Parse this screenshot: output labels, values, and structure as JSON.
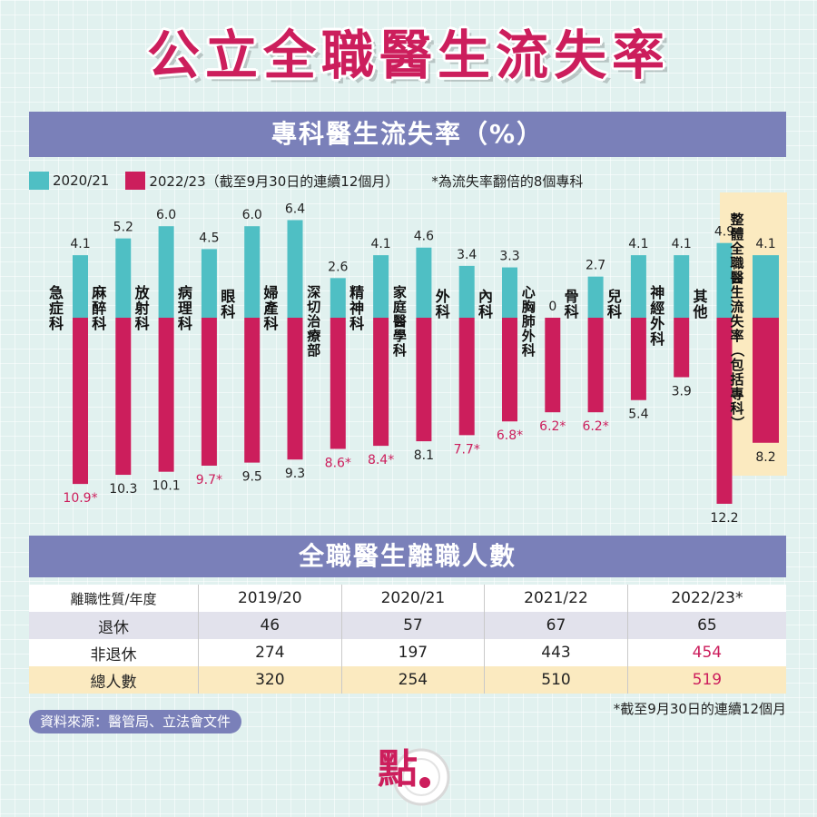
{
  "title": "公立全職醫生流失率",
  "chart_banner": "專科醫生流失率（%）",
  "legend": {
    "series1": "2020/21",
    "series2": "2022/23（截至9月30日的連續12個月）",
    "note": "*為流失率翻倍的8個專科"
  },
  "colors": {
    "teal": "#4fbfc4",
    "crimson": "#cc1e5c",
    "banner": "#7a80b9",
    "highlight": "#fbeac0"
  },
  "chart_data": {
    "type": "bar",
    "layout": "diverging",
    "categories": [
      "急症科",
      "麻醉科",
      "放射科",
      "病理科",
      "眼科",
      "婦產科",
      "深切治療部",
      "精神科",
      "家庭醫學科",
      "外科",
      "內科",
      "心胸肺外科",
      "骨科",
      "兒科",
      "神經外科",
      "其他"
    ],
    "series": [
      {
        "name": "2020/21",
        "values": [
          4.1,
          5.2,
          6.0,
          4.5,
          6.0,
          6.4,
          2.6,
          4.1,
          4.6,
          3.4,
          3.3,
          0,
          2.7,
          4.1,
          4.1,
          4.9
        ]
      },
      {
        "name": "2022/23",
        "values": [
          10.9,
          10.3,
          10.1,
          9.7,
          9.5,
          9.3,
          8.6,
          8.4,
          8.1,
          7.7,
          6.8,
          6.2,
          6.2,
          5.4,
          3.9,
          12.2
        ]
      }
    ],
    "labels2020": [
      "4.1",
      "5.2",
      "6.0",
      "4.5",
      "6.0",
      "6.4",
      "2.6",
      "4.1",
      "4.6",
      "3.4",
      "3.3",
      "0",
      "2.7",
      "4.1",
      "4.1",
      "4.9"
    ],
    "labels2022": [
      "10.9*",
      "10.3",
      "10.1",
      "9.7*",
      "9.5",
      "9.3",
      "8.6*",
      "8.4*",
      "8.1",
      "7.7*",
      "6.8*",
      "6.2*",
      "6.2*",
      "5.4",
      "3.9",
      "12.2"
    ],
    "doubled": [
      true,
      false,
      false,
      true,
      false,
      false,
      true,
      true,
      false,
      true,
      true,
      true,
      true,
      false,
      false,
      false
    ],
    "overall": {
      "label": "整體全職醫生流失率（包括專科）",
      "value2020": 4.1,
      "value2022": 8.2,
      "label2020": "4.1",
      "label2022": "8.2"
    }
  },
  "table_banner": "全職醫生離職人數",
  "table": {
    "headers": [
      "離職性質/年度",
      "2019/20",
      "2020/21",
      "2021/22",
      "2022/23*"
    ],
    "rows": [
      {
        "label": "退休",
        "values": [
          "46",
          "57",
          "67",
          "65"
        ]
      },
      {
        "label": "非退休",
        "values": [
          "274",
          "197",
          "443",
          "454"
        ]
      },
      {
        "label": "總人數",
        "values": [
          "320",
          "254",
          "510",
          "519"
        ]
      }
    ]
  },
  "table_note": "*截至9月30日的連續12個月",
  "source": "資料來源：醫管局、立法會文件",
  "logo_char": "點"
}
